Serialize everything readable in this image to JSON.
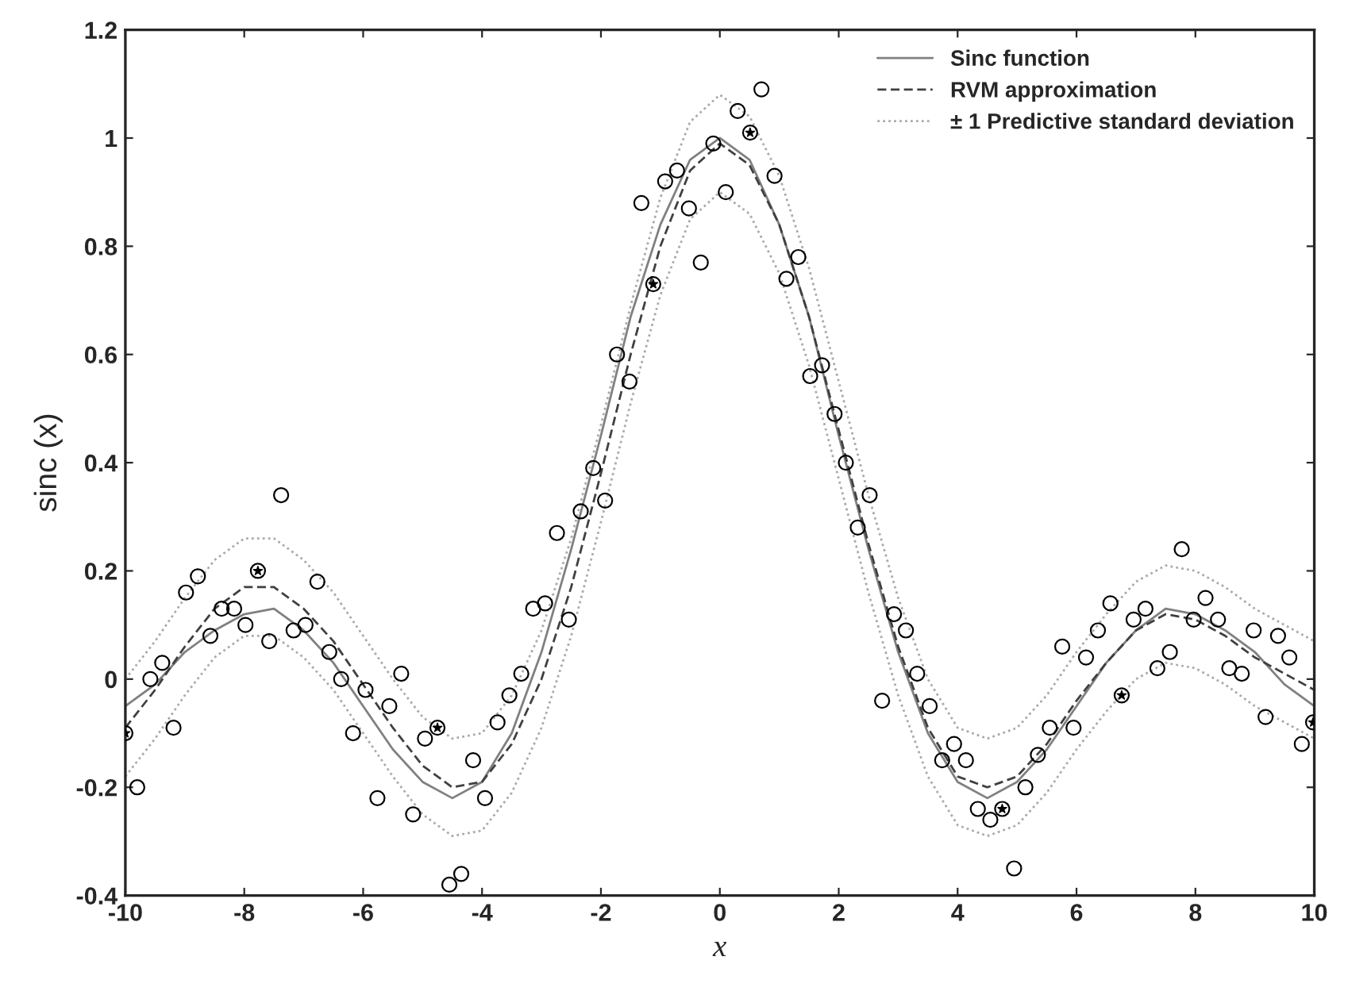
{
  "chart_data": {
    "type": "line",
    "xlabel": "x",
    "ylabel": "sinc (x)",
    "xlim": [
      -10,
      10
    ],
    "ylim": [
      -0.4,
      1.2
    ],
    "xticks": [
      -10,
      -8,
      -6,
      -4,
      -2,
      0,
      2,
      4,
      6,
      8,
      10
    ],
    "yticks": [
      -0.4,
      -0.2,
      0,
      0.2,
      0.4,
      0.6,
      0.8,
      1,
      1.2
    ],
    "grid": false,
    "legend": "top right",
    "series": [
      {
        "type": "scatter",
        "marker": "circle",
        "color": "#000000",
        "x": [
          -10,
          -7.77,
          -4.75,
          -1.12,
          0.51,
          4.75,
          6.76,
          9.98,
          -9.8,
          -9.58,
          -9.38,
          -9.19,
          -8.98,
          -8.78,
          -8.57,
          -8.38,
          -8.17,
          -7.98,
          -7.58,
          -7.38,
          -7.17,
          -6.97,
          -6.77,
          -6.57,
          -6.37,
          -6.17,
          -5.96,
          -5.76,
          -5.56,
          -5.36,
          -5.16,
          -4.96,
          -4.55,
          -4.35,
          -4.15,
          -3.95,
          -3.74,
          -3.54,
          -3.34,
          -3.14,
          -2.94,
          -2.74,
          -2.54,
          -2.34,
          -2.13,
          -1.93,
          -1.73,
          -1.52,
          -1.32,
          -0.92,
          -0.72,
          -0.52,
          -0.32,
          -0.11,
          0.1,
          0.3,
          0.7,
          0.92,
          1.12,
          1.32,
          1.52,
          1.72,
          1.93,
          2.12,
          2.32,
          2.52,
          2.73,
          2.93,
          3.13,
          3.32,
          3.53,
          3.74,
          3.94,
          4.14,
          4.34,
          4.55,
          4.95,
          5.14,
          5.35,
          5.55,
          5.76,
          5.95,
          6.16,
          6.36,
          6.57,
          6.96,
          7.16,
          7.36,
          7.57,
          7.77,
          7.97,
          8.17,
          8.38,
          8.57,
          8.78,
          8.98,
          9.18,
          9.39,
          9.58,
          9.79
        ],
        "values": [
          -0.1,
          0.2,
          -0.09,
          0.73,
          1.01,
          -0.24,
          -0.03,
          -0.08,
          -0.2,
          0.0,
          0.03,
          -0.09,
          0.16,
          0.19,
          0.08,
          0.13,
          0.13,
          0.1,
          0.07,
          0.34,
          0.09,
          0.1,
          0.18,
          0.05,
          0.0,
          -0.1,
          -0.02,
          -0.22,
          -0.05,
          0.01,
          -0.25,
          -0.11,
          -0.38,
          -0.36,
          -0.15,
          -0.22,
          -0.08,
          -0.03,
          0.01,
          0.13,
          0.14,
          0.27,
          0.11,
          0.31,
          0.39,
          0.33,
          0.6,
          0.55,
          0.88,
          0.92,
          0.94,
          0.87,
          0.77,
          0.99,
          0.9,
          1.05,
          1.09,
          0.93,
          0.74,
          0.78,
          0.56,
          0.58,
          0.49,
          0.4,
          0.28,
          0.34,
          -0.04,
          0.12,
          0.09,
          0.01,
          -0.05,
          -0.15,
          -0.12,
          -0.15,
          -0.24,
          -0.26,
          -0.35,
          -0.2,
          -0.14,
          -0.09,
          0.06,
          -0.09,
          0.04,
          0.09,
          0.14,
          0.11,
          0.13,
          0.02,
          0.05,
          0.24,
          0.11,
          0.15,
          0.11,
          0.02,
          0.01,
          0.09,
          -0.07,
          0.08,
          0.04,
          -0.12
        ]
      },
      {
        "type": "scatter",
        "marker": "star",
        "color": "#000000",
        "x": [
          -10,
          -7.77,
          -4.75,
          -1.12,
          0.51,
          4.75,
          6.76,
          9.98
        ],
        "values": [
          -0.1,
          0.2,
          -0.09,
          0.73,
          1.01,
          -0.24,
          -0.03,
          -0.08
        ]
      },
      {
        "name": "Sinc function",
        "line_style": "solid",
        "color": "#808080",
        "x": [
          -10,
          -9.5,
          -9,
          -8.5,
          -8,
          -7.5,
          -7,
          -6.5,
          -6,
          -5.5,
          -5,
          -4.5,
          -4,
          -3.5,
          -3,
          -2.5,
          -2,
          -1.5,
          -1,
          -0.5,
          0,
          0.5,
          1,
          1.5,
          2,
          2.5,
          3,
          3.5,
          4,
          4.5,
          5,
          5.5,
          6,
          6.5,
          7,
          7.5,
          8,
          8.5,
          9,
          9.5,
          10
        ],
        "values": [
          -0.05,
          -0.01,
          0.05,
          0.09,
          0.12,
          0.13,
          0.09,
          0.03,
          -0.05,
          -0.13,
          -0.19,
          -0.22,
          -0.19,
          -0.1,
          0.05,
          0.24,
          0.45,
          0.67,
          0.84,
          0.96,
          1,
          0.96,
          0.84,
          0.67,
          0.45,
          0.24,
          0.05,
          -0.1,
          -0.19,
          -0.22,
          -0.19,
          -0.13,
          -0.05,
          0.03,
          0.09,
          0.13,
          0.12,
          0.09,
          0.05,
          -0.01,
          -0.05
        ]
      },
      {
        "name": "RVM approximation",
        "line_style": "dashed",
        "color": "#404040",
        "x": [
          -10,
          -9.5,
          -9,
          -8.5,
          -8,
          -7.5,
          -7,
          -6.5,
          -6,
          -5.5,
          -5,
          -4.5,
          -4,
          -3.5,
          -3,
          -2.5,
          -2,
          -1.5,
          -1,
          -0.5,
          0,
          0.5,
          1,
          1.5,
          2,
          2.5,
          3,
          3.5,
          4,
          4.5,
          5,
          5.5,
          6,
          6.5,
          7,
          7.5,
          8,
          8.5,
          9,
          9.5,
          10
        ],
        "values": [
          -0.09,
          -0.02,
          0.06,
          0.13,
          0.17,
          0.17,
          0.13,
          0.07,
          -0.01,
          -0.09,
          -0.16,
          -0.2,
          -0.19,
          -0.12,
          0.0,
          0.17,
          0.38,
          0.6,
          0.8,
          0.94,
          0.99,
          0.95,
          0.84,
          0.67,
          0.46,
          0.25,
          0.06,
          -0.09,
          -0.18,
          -0.2,
          -0.18,
          -0.12,
          -0.04,
          0.03,
          0.09,
          0.12,
          0.11,
          0.08,
          0.04,
          0.01,
          -0.02
        ]
      },
      {
        "name": "± 1 Predictive standard deviation",
        "line_style": "dotted",
        "color": "#aaaaaa",
        "x": [
          -10,
          -9.5,
          -9,
          -8.5,
          -8,
          -7.5,
          -7,
          -6.5,
          -6,
          -5.5,
          -5,
          -4.5,
          -4,
          -3.5,
          -3,
          -2.5,
          -2,
          -1.5,
          -1,
          -0.5,
          0,
          0.5,
          1,
          1.5,
          2,
          2.5,
          3,
          3.5,
          4,
          4.5,
          5,
          5.5,
          6,
          6.5,
          7,
          7.5,
          8,
          8.5,
          9,
          9.5,
          10
        ],
        "values": [
          0.0,
          0.07,
          0.15,
          0.22,
          0.26,
          0.26,
          0.22,
          0.16,
          0.08,
          0.0,
          -0.07,
          -0.11,
          -0.1,
          -0.03,
          0.09,
          0.26,
          0.47,
          0.69,
          0.89,
          1.03,
          1.08,
          1.04,
          0.93,
          0.76,
          0.55,
          0.34,
          0.15,
          0.0,
          -0.09,
          -0.11,
          -0.09,
          -0.03,
          0.05,
          0.12,
          0.18,
          0.21,
          0.2,
          0.17,
          0.13,
          0.1,
          0.07
        ]
      },
      {
        "line_style": "dotted",
        "color": "#aaaaaa",
        "x": [
          -10,
          -9.5,
          -9,
          -8.5,
          -8,
          -7.5,
          -7,
          -6.5,
          -6,
          -5.5,
          -5,
          -4.5,
          -4,
          -3.5,
          -3,
          -2.5,
          -2,
          -1.5,
          -1,
          -0.5,
          0,
          0.5,
          1,
          1.5,
          2,
          2.5,
          3,
          3.5,
          4,
          4.5,
          5,
          5.5,
          6,
          6.5,
          7,
          7.5,
          8,
          8.5,
          9,
          9.5,
          10
        ],
        "values": [
          -0.18,
          -0.11,
          -0.03,
          0.04,
          0.08,
          0.08,
          0.04,
          -0.02,
          -0.1,
          -0.18,
          -0.25,
          -0.29,
          -0.28,
          -0.21,
          -0.09,
          0.08,
          0.29,
          0.51,
          0.71,
          0.85,
          0.9,
          0.86,
          0.75,
          0.58,
          0.37,
          0.16,
          -0.03,
          -0.18,
          -0.27,
          -0.29,
          -0.27,
          -0.21,
          -0.13,
          -0.06,
          0.0,
          0.03,
          0.02,
          -0.01,
          -0.05,
          -0.08,
          -0.11
        ]
      }
    ]
  }
}
